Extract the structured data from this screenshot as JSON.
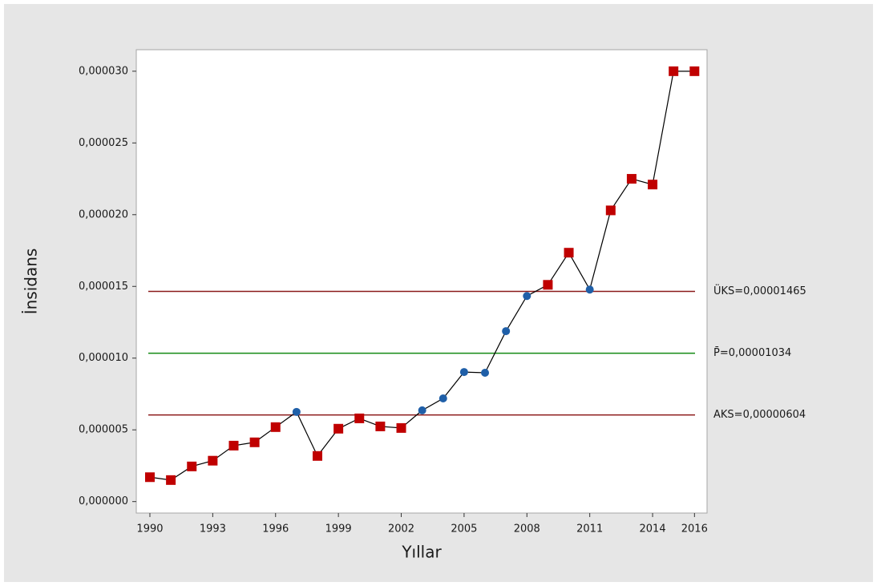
{
  "chart_data": {
    "type": "line",
    "x_label": "Yıllar",
    "y_label": "İnsidans",
    "x": [
      1990,
      1991,
      1992,
      1993,
      1994,
      1995,
      1996,
      1997,
      1998,
      1999,
      2000,
      2001,
      2002,
      2003,
      2004,
      2005,
      2006,
      2007,
      2008,
      2009,
      2010,
      2011,
      2012,
      2013,
      2014,
      2015,
      2016
    ],
    "series": [
      {
        "color": "#000000",
        "values": [
          1.7e-06,
          1.5e-06,
          2.45e-06,
          2.85e-06,
          3.9e-06,
          4.13e-06,
          5.19e-06,
          6.25e-06,
          3.18e-06,
          5.08e-06,
          5.8e-06,
          5.24e-06,
          5.13e-06,
          6.36e-06,
          7.19e-06,
          9.03e-06,
          8.98e-06,
          1.188e-05,
          1.433e-05,
          1.511e-05,
          1.735e-05,
          1.478e-05,
          2.03e-05,
          2.25e-05,
          2.21e-05,
          3e-05,
          3e-05
        ],
        "point_colors": [
          "#c00000",
          "#c00000",
          "#c00000",
          "#c00000",
          "#c00000",
          "#c00000",
          "#c00000",
          "#1f5fa8",
          "#c00000",
          "#c00000",
          "#c00000",
          "#c00000",
          "#c00000",
          "#1f5fa8",
          "#1f5fa8",
          "#1f5fa8",
          "#1f5fa8",
          "#1f5fa8",
          "#1f5fa8",
          "#c00000",
          "#c00000",
          "#1f5fa8",
          "#c00000",
          "#c00000",
          "#c00000",
          "#c00000",
          "#c00000"
        ],
        "markers": [
          "square",
          "square",
          "square",
          "square",
          "square",
          "square",
          "square",
          "circle",
          "square",
          "square",
          "square",
          "square",
          "square",
          "circle",
          "circle",
          "circle",
          "circle",
          "circle",
          "circle",
          "square",
          "square",
          "circle",
          "square",
          "square",
          "square",
          "square",
          "square"
        ]
      }
    ],
    "reference_lines": [
      {
        "value": 1.465e-05,
        "label": "ÜKS=0,00001465",
        "color": "#8b1a1a"
      },
      {
        "value": 1.034e-05,
        "label": "P̄=0,00001034",
        "color": "#138a13"
      },
      {
        "value": 6.04e-06,
        "label": "AKS=0,00000604",
        "color": "#8b1a1a"
      }
    ],
    "xlim": [
      1989.35,
      2016.6
    ],
    "ylim": [
      -8e-07,
      3.15e-05
    ],
    "xticks": [
      1990,
      1993,
      1996,
      1999,
      2002,
      2005,
      2008,
      2011,
      2014,
      2016
    ],
    "yticks": [
      {
        "value": 0,
        "label": "0,000000"
      },
      {
        "value": 5e-06,
        "label": "0,000005"
      },
      {
        "value": 1e-05,
        "label": "0,000010"
      },
      {
        "value": 1.5e-05,
        "label": "0,000015"
      },
      {
        "value": 2e-05,
        "label": "0,000020"
      },
      {
        "value": 2.5e-05,
        "label": "0,000025"
      },
      {
        "value": 3e-05,
        "label": "0,000030"
      }
    ]
  }
}
